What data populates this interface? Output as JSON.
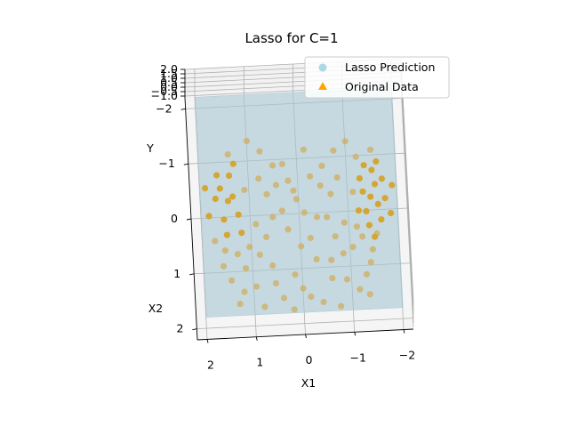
{
  "chart_data": {
    "type": "scatter",
    "projection": "3d",
    "title": "Lasso for C=1",
    "xlabel": "X1",
    "ylabel": "X2",
    "zlabel": "Y",
    "x_ticks": [
      "2",
      "1",
      "0",
      "−1",
      "−2"
    ],
    "y_ticks": [
      "−2",
      "−1",
      "0",
      "1",
      "2"
    ],
    "z_ticks": [
      "2.0",
      "1.5",
      "1.0",
      "0.5",
      "0.0",
      "−0.5",
      "−1.0"
    ],
    "xlim": [
      -2.2,
      2.2
    ],
    "ylim": [
      -2.2,
      2.2
    ],
    "zlim": [
      -1.2,
      2.0
    ],
    "grid": true,
    "legend_position": "top-right",
    "colors": {
      "prediction": "#add8e6",
      "surface": "#a9c7d2",
      "original": "#ffa500"
    },
    "series": [
      {
        "name": "Lasso Prediction",
        "kind": "surface",
        "marker": "circle",
        "plane_z": 0.05
      },
      {
        "name": "Original Data",
        "kind": "scatter",
        "marker": "triangle",
        "points": [
          [
            -1.45,
            0.05,
            0.6
          ],
          [
            -1.55,
            -0.2,
            0.45
          ],
          [
            -1.35,
            0.3,
            0.55
          ],
          [
            -1.6,
            0.15,
            0.35
          ],
          [
            -1.5,
            -0.45,
            0.5
          ],
          [
            -1.3,
            -0.1,
            0.3
          ],
          [
            -1.7,
            -0.3,
            0.4
          ],
          [
            -1.4,
            0.5,
            0.2
          ],
          [
            -1.25,
            -0.35,
            0.25
          ],
          [
            -1.65,
            0.4,
            0.15
          ],
          [
            -1.5,
            0.7,
            0.1
          ],
          [
            -1.2,
            0.2,
            0.05
          ],
          [
            -1.35,
            -0.6,
            0.15
          ],
          [
            -1.6,
            -0.65,
            0.2
          ],
          [
            -1.45,
            0.9,
            -0.05
          ],
          [
            -1.1,
            -0.15,
            0.0
          ],
          [
            -1.75,
            0.0,
            0.05
          ],
          [
            -1.25,
            0.65,
            -0.1
          ],
          [
            -1.55,
            0.6,
            -0.15
          ],
          [
            -1.15,
            0.45,
            -0.2
          ],
          [
            -1.4,
            1.1,
            -0.25
          ],
          [
            -1.05,
            0.8,
            -0.3
          ],
          [
            -1.3,
            1.3,
            -0.35
          ],
          [
            -1.2,
            -0.8,
            -0.1
          ],
          [
            -1.5,
            -0.9,
            0.0
          ],
          [
            1.45,
            0.0,
            0.6
          ],
          [
            1.6,
            -0.25,
            0.5
          ],
          [
            1.35,
            -0.1,
            0.45
          ],
          [
            1.55,
            0.3,
            0.4
          ],
          [
            1.4,
            -0.5,
            0.35
          ],
          [
            1.7,
            -0.1,
            0.3
          ],
          [
            1.25,
            0.2,
            0.25
          ],
          [
            1.5,
            0.55,
            0.2
          ],
          [
            1.65,
            -0.55,
            0.15
          ],
          [
            1.3,
            -0.75,
            0.1
          ],
          [
            1.2,
            0.5,
            0.05
          ],
          [
            1.55,
            0.8,
            0.0
          ],
          [
            1.4,
            -0.95,
            -0.05
          ],
          [
            1.1,
            -0.3,
            -0.1
          ],
          [
            1.3,
            0.85,
            -0.15
          ],
          [
            1.6,
            1.05,
            -0.2
          ],
          [
            1.15,
            1.1,
            -0.25
          ],
          [
            1.45,
            1.3,
            -0.3
          ],
          [
            1.05,
            0.7,
            -0.35
          ],
          [
            1.75,
            0.6,
            -0.1
          ],
          [
            0.65,
            -0.2,
            -0.1
          ],
          [
            0.55,
            0.2,
            -0.2
          ],
          [
            0.8,
            -0.5,
            -0.15
          ],
          [
            0.7,
            0.55,
            -0.25
          ],
          [
            0.5,
            -0.75,
            -0.3
          ],
          [
            0.85,
            0.85,
            -0.35
          ],
          [
            0.6,
            1.05,
            -0.4
          ],
          [
            0.75,
            -1.0,
            -0.2
          ],
          [
            0.9,
            0.3,
            -0.3
          ],
          [
            0.45,
            -0.4,
            -0.35
          ],
          [
            -0.65,
            -0.15,
            -0.1
          ],
          [
            -0.55,
            0.25,
            -0.2
          ],
          [
            -0.8,
            -0.45,
            -0.15
          ],
          [
            -0.7,
            0.6,
            -0.25
          ],
          [
            -0.5,
            -0.7,
            -0.3
          ],
          [
            -0.85,
            0.9,
            -0.35
          ],
          [
            -0.6,
            1.0,
            -0.4
          ],
          [
            -0.75,
            -0.95,
            -0.2
          ],
          [
            -0.9,
            0.35,
            -0.3
          ],
          [
            -0.45,
            -0.35,
            -0.35
          ],
          [
            0.1,
            -0.3,
            -0.45
          ],
          [
            -0.1,
            0.1,
            -0.5
          ],
          [
            0.25,
            0.4,
            -0.45
          ],
          [
            -0.25,
            -0.55,
            -0.5
          ],
          [
            0.0,
            0.7,
            -0.55
          ],
          [
            0.3,
            -0.8,
            -0.5
          ],
          [
            -0.3,
            0.95,
            -0.55
          ],
          [
            0.15,
            1.2,
            -0.6
          ],
          [
            -0.15,
            -1.05,
            -0.55
          ],
          [
            0.35,
            0.05,
            -0.5
          ],
          [
            -0.35,
            0.2,
            -0.45
          ],
          [
            0.05,
            -0.15,
            -0.5
          ],
          [
            0.2,
            -0.5,
            -0.55
          ],
          [
            -0.2,
            0.55,
            -0.6
          ],
          [
            0.0,
            1.45,
            -0.65
          ],
          [
            1.2,
            1.5,
            -0.4
          ],
          [
            -1.15,
            1.55,
            -0.45
          ],
          [
            0.95,
            1.4,
            -0.5
          ],
          [
            -0.9,
            1.35,
            -0.5
          ],
          [
            0.4,
            1.6,
            -0.7
          ],
          [
            -0.4,
            1.7,
            -0.75
          ],
          [
            1.0,
            -1.2,
            -0.2
          ],
          [
            -1.0,
            -1.1,
            -0.15
          ],
          [
            1.85,
            0.2,
            0.25
          ],
          [
            -1.85,
            0.3,
            0.2
          ],
          [
            1.9,
            -0.3,
            0.3
          ],
          [
            -1.9,
            -0.2,
            0.25
          ],
          [
            0.55,
            1.35,
            -0.55
          ],
          [
            -0.6,
            1.3,
            -0.6
          ],
          [
            0.2,
            1.8,
            -0.8
          ],
          [
            -0.15,
            1.6,
            -0.7
          ],
          [
            1.3,
            1.7,
            -0.5
          ],
          [
            -1.35,
            1.65,
            -0.45
          ],
          [
            0.8,
            1.75,
            -0.65
          ],
          [
            -0.75,
            1.8,
            -0.7
          ]
        ]
      }
    ]
  }
}
